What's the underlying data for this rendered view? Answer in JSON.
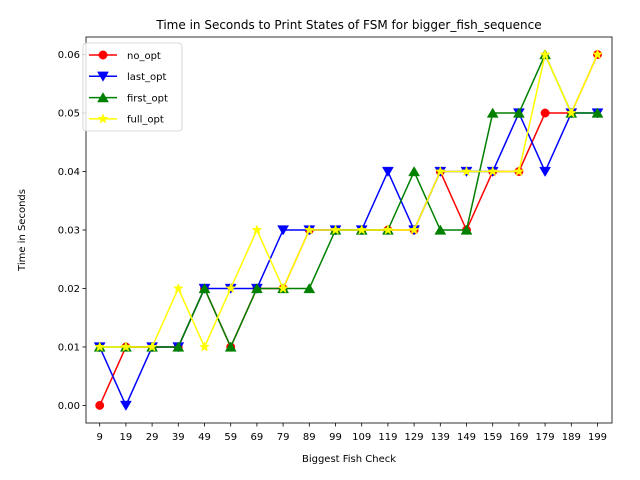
{
  "chart_data": {
    "type": "line",
    "title": "Time in Seconds to Print States of FSM for bigger_fish_sequence",
    "xlabel": "Biggest Fish Check",
    "ylabel": "Time in Seconds",
    "categories": [
      "9",
      "19",
      "29",
      "39",
      "49",
      "59",
      "69",
      "79",
      "89",
      "99",
      "109",
      "119",
      "129",
      "139",
      "149",
      "159",
      "169",
      "179",
      "189",
      "199"
    ],
    "ylim": [
      -0.003,
      0.063
    ],
    "yticks": [
      "0.00",
      "0.01",
      "0.02",
      "0.03",
      "0.04",
      "0.05",
      "0.06"
    ],
    "grid": false,
    "legend_position": "upper-left",
    "series": [
      {
        "name": "no_opt",
        "color": "#ff0000",
        "marker": "circle",
        "values": [
          0.0,
          0.01,
          0.01,
          0.01,
          0.02,
          0.01,
          0.02,
          0.02,
          0.03,
          0.03,
          0.03,
          0.03,
          0.03,
          0.04,
          0.03,
          0.04,
          0.04,
          0.05,
          0.05,
          0.06
        ]
      },
      {
        "name": "last_opt",
        "color": "#0000ff",
        "marker": "triangle-down",
        "values": [
          0.01,
          0.0,
          0.01,
          0.01,
          0.02,
          0.02,
          0.02,
          0.03,
          0.03,
          0.03,
          0.03,
          0.04,
          0.03,
          0.04,
          0.04,
          0.04,
          0.05,
          0.04,
          0.05,
          0.05
        ]
      },
      {
        "name": "first_opt",
        "color": "#008000",
        "marker": "triangle-up",
        "values": [
          0.01,
          0.01,
          0.01,
          0.01,
          0.02,
          0.01,
          0.02,
          0.02,
          0.02,
          0.03,
          0.03,
          0.03,
          0.04,
          0.03,
          0.03,
          0.05,
          0.05,
          0.06,
          0.05,
          0.05
        ]
      },
      {
        "name": "full_opt",
        "color": "#ffff00",
        "marker": "star",
        "values": [
          0.01,
          0.01,
          0.01,
          0.02,
          0.01,
          0.02,
          0.03,
          0.02,
          0.03,
          0.03,
          0.03,
          0.03,
          0.03,
          0.04,
          0.04,
          0.04,
          0.04,
          0.06,
          0.05,
          0.06
        ]
      }
    ]
  }
}
